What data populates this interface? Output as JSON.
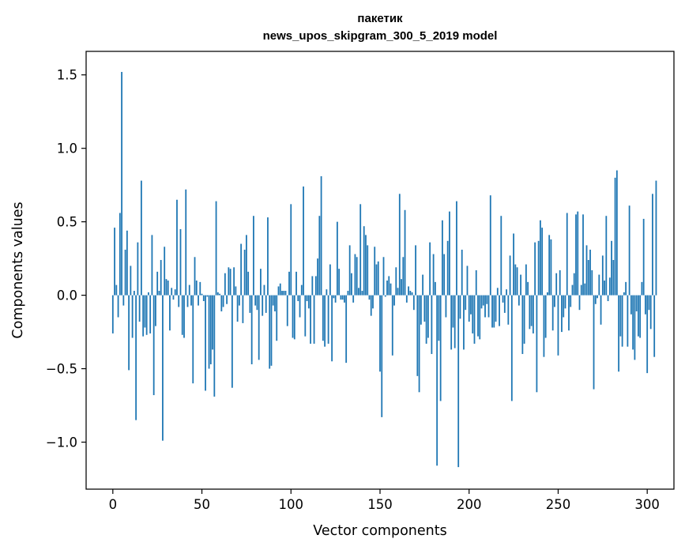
{
  "chart_data": {
    "type": "bar",
    "title": [
      "пакетик",
      "news_upos_skipgram_300_5_2019 model"
    ],
    "xlabel": "Vector components",
    "ylabel": "Components values",
    "xlim": [
      -15,
      315
    ],
    "ylim": [
      -1.32,
      1.66
    ],
    "xticks": [
      0,
      50,
      100,
      150,
      200,
      250,
      300
    ],
    "xtick_labels": [
      "0",
      "50",
      "100",
      "150",
      "200",
      "250",
      "300"
    ],
    "yticks": [
      -1.0,
      -0.5,
      0.0,
      0.5,
      1.0,
      1.5
    ],
    "ytick_labels": [
      "−1.0",
      "−0.5",
      "0.0",
      "0.5",
      "1.0",
      "1.5"
    ],
    "bar_color": "#1f77b4",
    "values": [
      -0.26,
      0.46,
      0.07,
      -0.15,
      0.56,
      1.52,
      -0.07,
      0.31,
      0.44,
      -0.51,
      0.2,
      -0.29,
      0.03,
      -0.85,
      0.36,
      -0.18,
      0.78,
      -0.28,
      -0.22,
      -0.27,
      0.02,
      -0.26,
      0.41,
      -0.68,
      -0.21,
      0.16,
      0.03,
      0.24,
      -0.99,
      0.33,
      0.11,
      0.1,
      -0.24,
      0.05,
      -0.03,
      0.04,
      0.65,
      -0.08,
      0.45,
      -0.27,
      -0.29,
      0.72,
      -0.08,
      0.07,
      -0.07,
      -0.6,
      0.26,
      0.1,
      -0.07,
      0.09,
      0.01,
      -0.04,
      -0.65,
      -0.01,
      -0.5,
      -0.47,
      -0.37,
      -0.69,
      0.64,
      0.02,
      0.01,
      -0.11,
      -0.08,
      0.15,
      -0.06,
      0.19,
      0.18,
      -0.63,
      0.19,
      0.06,
      -0.18,
      -0.07,
      0.35,
      -0.19,
      0.31,
      0.41,
      0.16,
      -0.12,
      -0.47,
      0.54,
      -0.07,
      -0.1,
      -0.44,
      0.18,
      -0.14,
      0.07,
      -0.12,
      0.53,
      -0.5,
      -0.48,
      -0.07,
      -0.11,
      -0.31,
      0.06,
      0.08,
      0.03,
      0.03,
      0.03,
      -0.21,
      0.16,
      0.62,
      -0.29,
      -0.3,
      0.16,
      -0.04,
      -0.15,
      0.07,
      0.74,
      -0.28,
      -0.04,
      -0.09,
      -0.33,
      0.13,
      -0.33,
      0.13,
      0.25,
      0.54,
      0.81,
      -0.31,
      -0.35,
      0.04,
      -0.33,
      0.21,
      -0.45,
      -0.02,
      -0.05,
      0.5,
      0.18,
      -0.03,
      -0.03,
      -0.05,
      -0.46,
      0.03,
      0.34,
      0.15,
      -0.05,
      0.28,
      0.26,
      0.05,
      0.62,
      0.03,
      0.47,
      0.41,
      0.34,
      -0.03,
      -0.14,
      -0.09,
      0.33,
      0.21,
      0.23,
      -0.52,
      -0.83,
      0.26,
      -0.01,
      0.1,
      0.13,
      0.08,
      -0.41,
      -0.07,
      0.19,
      0.05,
      0.69,
      0.11,
      0.26,
      0.58,
      -0.05,
      0.06,
      0.03,
      0.02,
      -0.1,
      0.34,
      -0.55,
      -0.66,
      -0.2,
      0.14,
      -0.18,
      -0.33,
      -0.29,
      0.36,
      -0.4,
      0.28,
      0.09,
      -1.16,
      -0.31,
      -0.72,
      0.51,
      0.28,
      -0.15,
      0.37,
      0.57,
      -0.37,
      -0.22,
      -0.36,
      0.64,
      -1.17,
      -0.16,
      0.31,
      -0.37,
      -0.1,
      0.2,
      -0.18,
      -0.13,
      -0.26,
      -0.33,
      0.17,
      -0.28,
      -0.3,
      -0.09,
      -0.07,
      -0.15,
      -0.06,
      -0.15,
      0.68,
      -0.22,
      -0.22,
      -0.18,
      0.05,
      -0.21,
      0.54,
      -0.05,
      -0.12,
      0.04,
      -0.2,
      0.27,
      -0.72,
      0.42,
      0.21,
      0.19,
      -0.07,
      0.14,
      -0.4,
      -0.33,
      0.21,
      0.09,
      -0.23,
      -0.21,
      -0.26,
      0.36,
      -0.66,
      0.37,
      0.51,
      0.46,
      -0.42,
      -0.29,
      0.02,
      0.41,
      0.38,
      -0.24,
      -0.08,
      0.15,
      -0.41,
      0.17,
      -0.25,
      -0.15,
      -0.09,
      0.56,
      -0.24,
      -0.08,
      0.07,
      0.15,
      0.55,
      0.57,
      -0.1,
      0.07,
      0.55,
      0.08,
      0.34,
      0.24,
      0.31,
      0.17,
      -0.64,
      -0.06,
      -0.02,
      0.14,
      -0.2,
      0.27,
      0.1,
      0.54,
      -0.04,
      0.12,
      0.37,
      0.24,
      0.8,
      0.85,
      -0.52,
      -0.28,
      -0.35,
      0.02,
      0.09,
      -0.35,
      0.61,
      -0.13,
      -0.37,
      -0.44,
      -0.11,
      -0.28,
      -0.29,
      0.09,
      0.52,
      -0.13,
      -0.53,
      -0.1,
      -0.23,
      0.69,
      -0.42,
      0.78
    ]
  }
}
